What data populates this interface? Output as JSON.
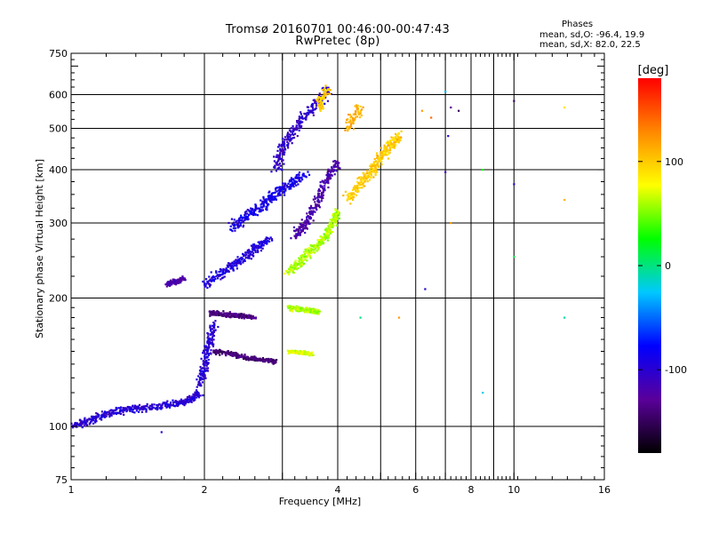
{
  "header": {
    "title": "Tromsø 20160701 00:46:00-00:47:43",
    "subtitle": "RwPretec (8p)"
  },
  "stats": {
    "title": "Phases",
    "o_line": "mean, sd,O: -96.4, 19.9",
    "x_line": "mean, sd,X:  82.0, 22.5"
  },
  "chart_data": {
    "type": "scatter",
    "title": "Tromsø 20160701 00:46:00-00:47:43",
    "subtitle": "RwPretec (8p)",
    "xlabel": "Frequency [MHz]",
    "ylabel": "Stationary phase Virtual Height [km]",
    "x_scale": "log",
    "y_scale": "log",
    "xlim": [
      1,
      16
    ],
    "ylim": [
      75,
      750
    ],
    "x_ticks": [
      1,
      2,
      4,
      6,
      8,
      10,
      16
    ],
    "x_gridlines": [
      2,
      3,
      4,
      5,
      6,
      7,
      8,
      9,
      10
    ],
    "y_ticks": [
      75,
      100,
      200,
      300,
      400,
      500,
      600,
      750
    ],
    "y_gridlines": [
      100,
      200,
      300,
      400,
      500,
      600
    ],
    "grid": true,
    "colorbar": {
      "label": "[deg]",
      "min": -180,
      "max": 180,
      "ticks": [
        -100,
        0,
        100
      ],
      "colormap": [
        "#000000",
        "#5a009a",
        "#0000ff",
        "#00c8ff",
        "#00ff00",
        "#ffff00",
        "#ff8800",
        "#ff0000"
      ]
    },
    "traces": [
      {
        "x": [
          1.0,
          1.1,
          1.2,
          1.35,
          1.5,
          1.7,
          1.85,
          1.95
        ],
        "y": [
          100,
          103,
          107,
          110,
          110,
          113,
          115,
          120
        ],
        "phase": -100,
        "spread": 0.028
      },
      {
        "x": [
          1.95,
          2.0,
          2.05,
          2.1
        ],
        "y": [
          125,
          140,
          155,
          175
        ],
        "phase": -100,
        "spread": 0.03
      },
      {
        "x": [
          2.0,
          2.2,
          2.4,
          2.6,
          2.8
        ],
        "y": [
          215,
          230,
          245,
          260,
          275
        ],
        "phase": -95,
        "spread": 0.035
      },
      {
        "x": [
          2.3,
          2.5,
          2.7,
          2.9,
          3.1,
          3.4
        ],
        "y": [
          290,
          310,
          330,
          350,
          370,
          390
        ],
        "phase": -90,
        "spread": 0.04
      },
      {
        "x": [
          2.9,
          3.0,
          3.2,
          3.5,
          3.8
        ],
        "y": [
          400,
          450,
          500,
          560,
          620
        ],
        "phase": -105,
        "spread": 0.04
      },
      {
        "x": [
          3.2,
          3.4,
          3.6,
          3.8,
          4.0
        ],
        "y": [
          280,
          300,
          340,
          380,
          420
        ],
        "phase": -120,
        "spread": 0.035
      },
      {
        "x": [
          2.05,
          2.2,
          2.4,
          2.6
        ],
        "y": [
          185,
          183,
          182,
          180
        ],
        "phase": -135,
        "spread": 0.02
      },
      {
        "x": [
          2.1,
          2.3,
          2.5,
          2.7,
          2.9
        ],
        "y": [
          150,
          148,
          145,
          143,
          142
        ],
        "phase": -140,
        "spread": 0.018
      },
      {
        "x": [
          1.65,
          1.7,
          1.8
        ],
        "y": [
          215,
          218,
          222
        ],
        "phase": -120,
        "spread": 0.02
      },
      {
        "x": [
          3.1,
          3.3,
          3.5,
          3.6
        ],
        "y": [
          190,
          188,
          187,
          185
        ],
        "phase": 60,
        "spread": 0.02
      },
      {
        "x": [
          3.1,
          3.3,
          3.5
        ],
        "y": [
          150,
          149,
          148
        ],
        "phase": 70,
        "spread": 0.015
      },
      {
        "x": [
          3.1,
          3.3,
          3.5,
          3.7,
          3.9,
          4.0
        ],
        "y": [
          230,
          245,
          260,
          275,
          300,
          320
        ],
        "phase": 60,
        "spread": 0.03
      },
      {
        "x": [
          3.6,
          3.8
        ],
        "y": [
          560,
          620
        ],
        "phase": 100,
        "spread": 0.04
      },
      {
        "x": [
          4.2,
          4.5,
          4.8,
          5.0,
          5.3,
          5.5
        ],
        "y": [
          340,
          370,
          400,
          430,
          460,
          480
        ],
        "phase": 100,
        "spread": 0.04
      },
      {
        "x": [
          4.2,
          4.5
        ],
        "y": [
          500,
          560
        ],
        "phase": 110,
        "spread": 0.04
      }
    ],
    "scattered_points": [
      {
        "x": 6.2,
        "y": 550,
        "phase": 120
      },
      {
        "x": 6.5,
        "y": 530,
        "phase": 140
      },
      {
        "x": 7.0,
        "y": 610,
        "phase": -30
      },
      {
        "x": 7.2,
        "y": 560,
        "phase": -130
      },
      {
        "x": 7.5,
        "y": 550,
        "phase": -150
      },
      {
        "x": 7.1,
        "y": 480,
        "phase": -100
      },
      {
        "x": 7.0,
        "y": 395,
        "phase": -110
      },
      {
        "x": 7.2,
        "y": 300,
        "phase": 120
      },
      {
        "x": 6.3,
        "y": 210,
        "phase": -100
      },
      {
        "x": 8.5,
        "y": 400,
        "phase": 30
      },
      {
        "x": 10.0,
        "y": 580,
        "phase": -150
      },
      {
        "x": 10.0,
        "y": 370,
        "phase": -100
      },
      {
        "x": 10.0,
        "y": 250,
        "phase": 10
      },
      {
        "x": 13.0,
        "y": 560,
        "phase": 90
      },
      {
        "x": 13.0,
        "y": 340,
        "phase": 110
      },
      {
        "x": 8.5,
        "y": 120,
        "phase": -20
      },
      {
        "x": 13.0,
        "y": 180,
        "phase": -10
      },
      {
        "x": 5.5,
        "y": 180,
        "phase": 120
      },
      {
        "x": 4.5,
        "y": 180,
        "phase": 0
      },
      {
        "x": 1.6,
        "y": 97,
        "phase": -100
      }
    ]
  }
}
